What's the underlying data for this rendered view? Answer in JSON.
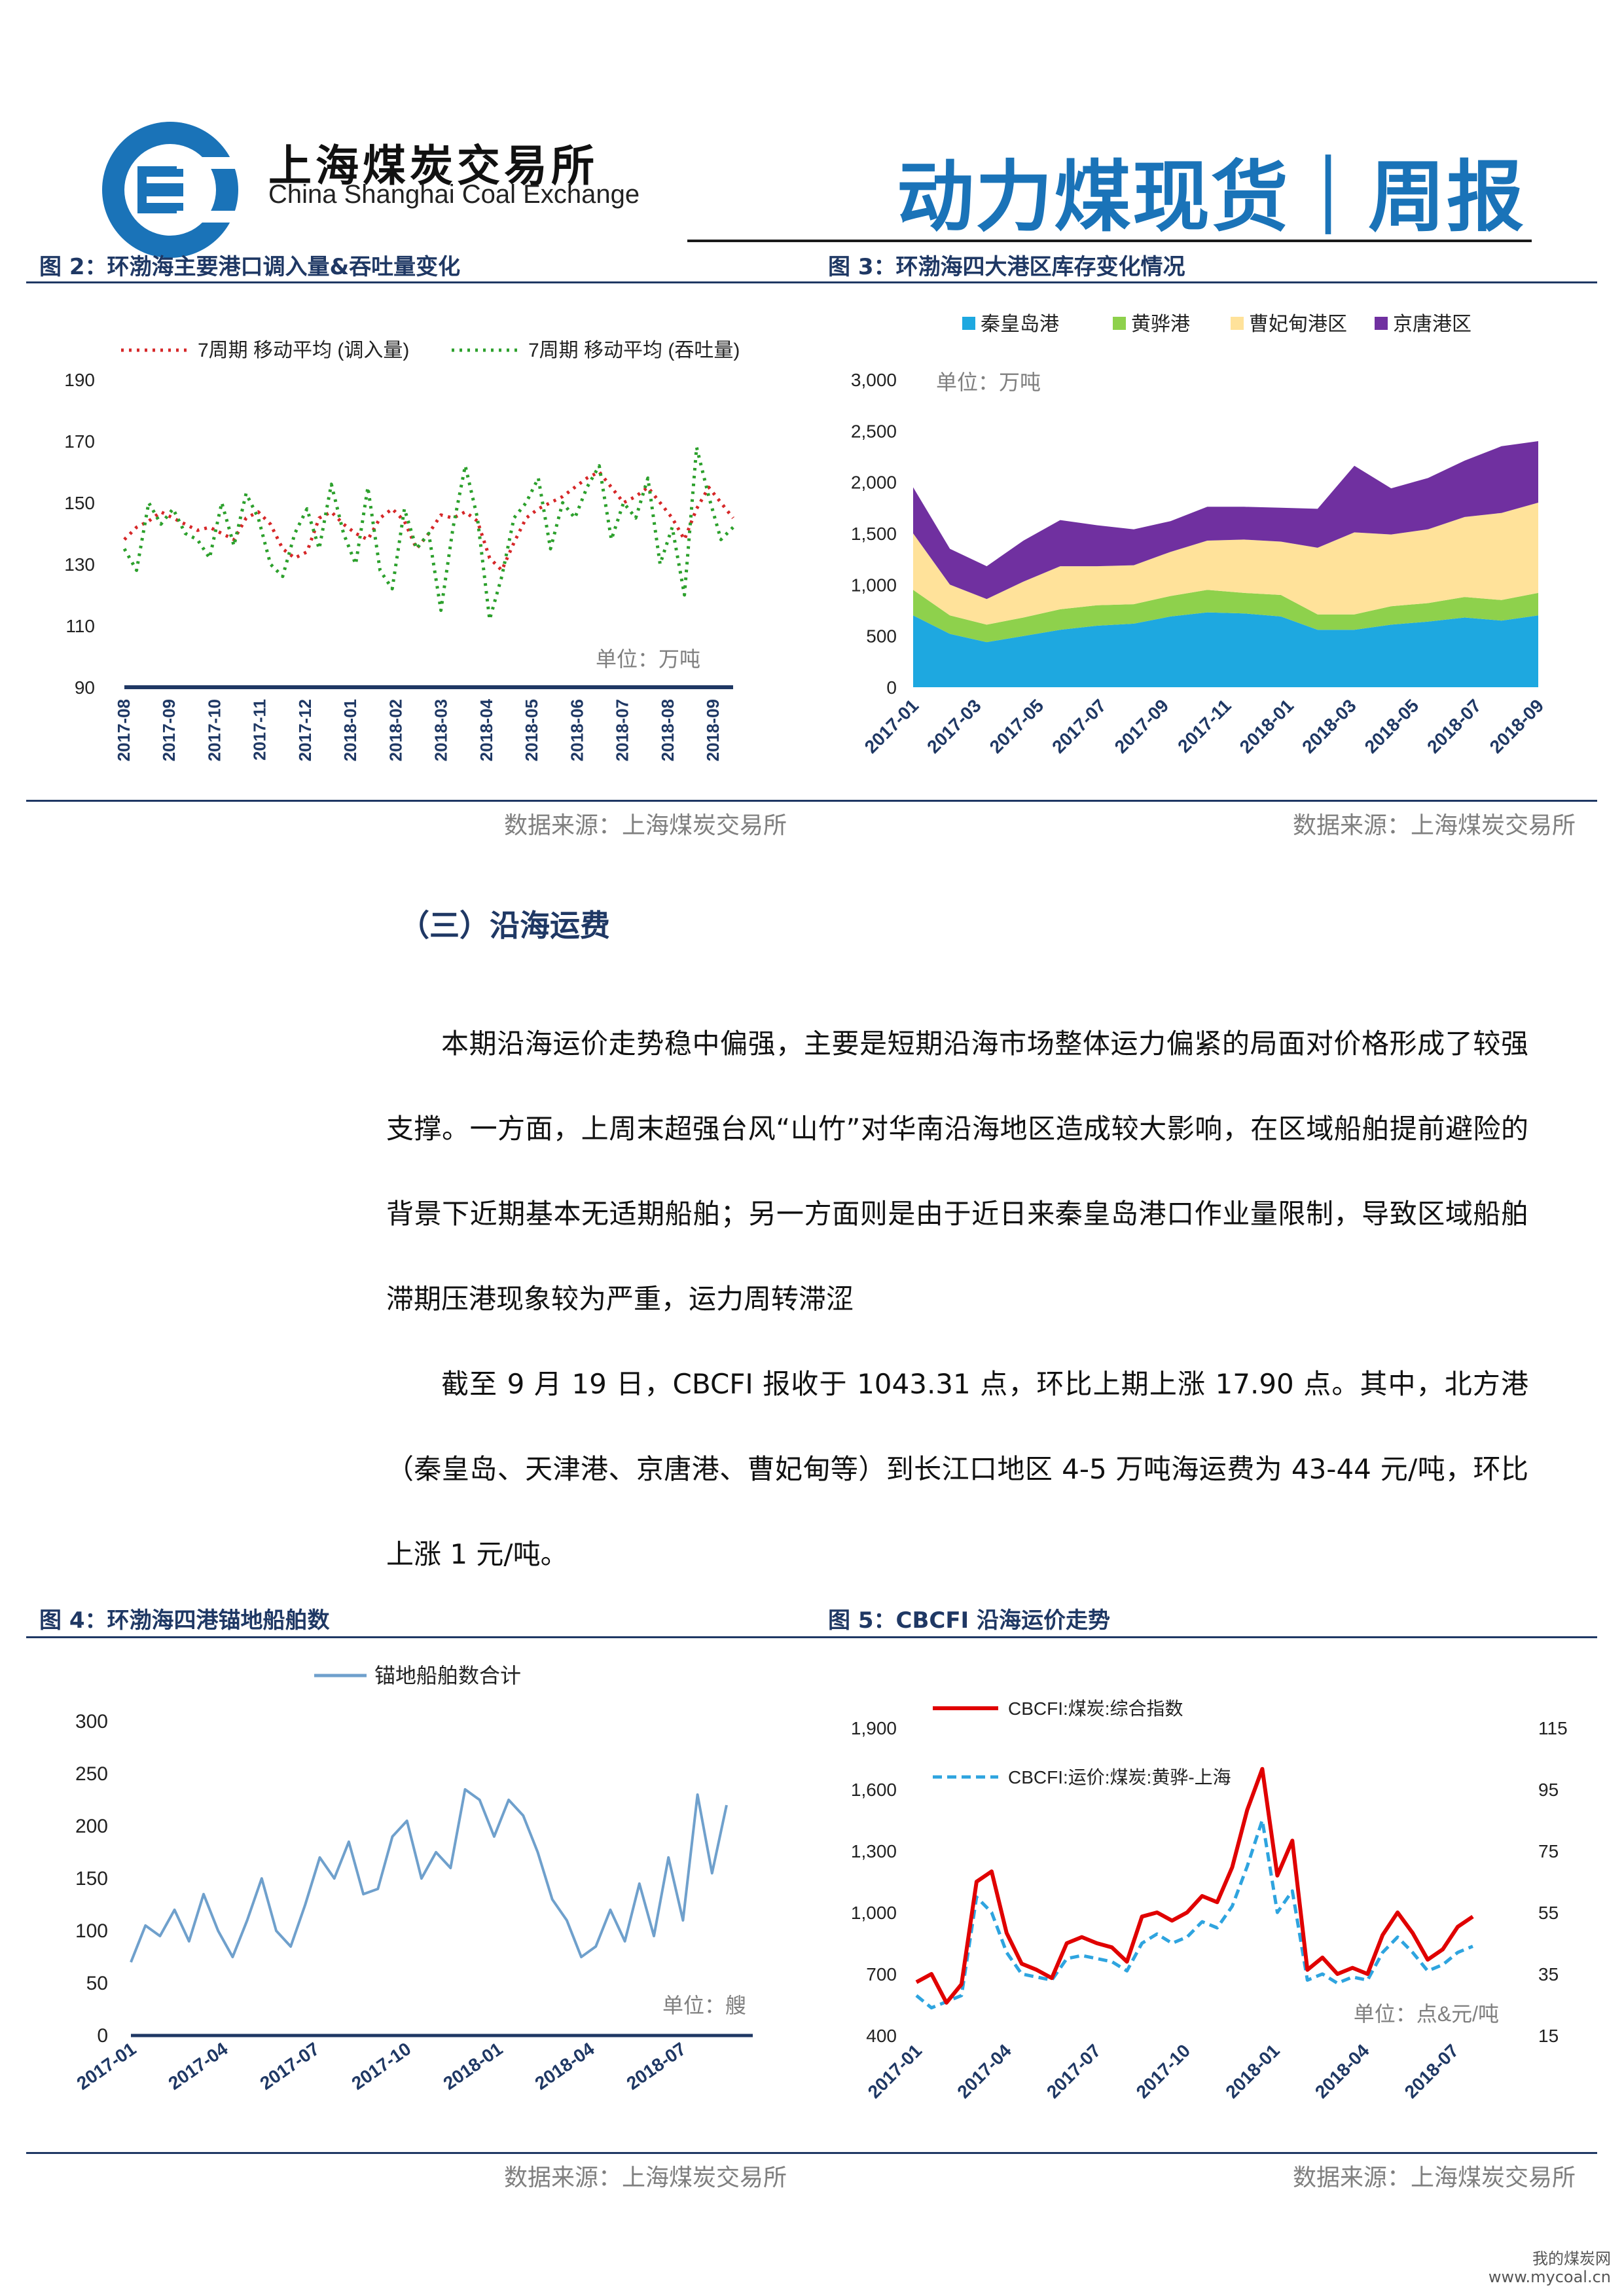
{
  "header": {
    "brand_cn": "上海煤炭交易所",
    "brand_en": "China Shanghai Coal Exchange",
    "report_title": "动力煤现货｜周报"
  },
  "colors": {
    "brand_blue": "#1a73b8",
    "navy": "#1f3864"
  },
  "figures": {
    "fig2": {
      "title": "图 2：环渤海主要港口调入量&吞吐量变化",
      "source": "数据来源：上海煤炭交易所",
      "unit": "单位：万吨"
    },
    "fig3": {
      "title": "图 3：环渤海四大港区库存变化情况",
      "source": "数据来源：上海煤炭交易所",
      "unit": "单位：万吨"
    },
    "fig4": {
      "title": "图 4：环渤海四港锚地船舶数",
      "source": "数据来源：上海煤炭交易所",
      "unit": "单位：艘"
    },
    "fig5": {
      "title": "图 5：CBCFI 沿海运价走势",
      "source": "数据来源：上海煤炭交易所",
      "unit": "单位：点&元/吨"
    }
  },
  "section": {
    "heading": "（三）沿海运费",
    "para1": "本期沿海运价走势稳中偏强，主要是短期沿海市场整体运力偏紧的局面对价格形成了较强支撑。一方面，上周末超强台风“山竹”对华南沿海地区造成较大影响，在区域船舶提前避险的背景下近期基本无适期船舶；另一方面则是由于近日来秦皇岛港口作业量限制，导致区域船舶滞期压港现象较为严重，运力周转滞涩",
    "para2": "截至 9 月 19 日，CBCFI 报收于 1043.31 点，环比上期上涨 17.90 点。其中，北方港（秦皇岛、天津港、京唐港、曹妃甸等）到长江口地区 4-5 万吨海运费为 43-44 元/吨，环比上涨 1 元/吨。"
  },
  "watermark": {
    "cn": "我的煤炭网",
    "url": "www.mycoal.cn"
  },
  "chart_data": [
    {
      "id": "fig2",
      "type": "line",
      "series": [
        {
          "name": "7周期 移动平均 (调入量)",
          "color": "#d62728",
          "values": [
            138,
            142,
            144,
            147,
            145,
            143,
            141,
            142,
            140,
            138,
            145,
            147,
            143,
            135,
            132,
            134,
            145,
            147,
            143,
            140,
            138,
            145,
            148,
            144,
            135,
            140,
            146,
            145,
            147,
            144,
            132,
            128,
            137,
            145,
            148,
            150,
            152,
            155,
            158,
            160,
            155,
            150,
            152,
            155,
            150,
            145,
            138,
            148,
            155,
            150,
            145
          ]
        },
        {
          "name": "7周期 移动平均 (吞吐量)",
          "color": "#2ca02c",
          "values": [
            135,
            128,
            150,
            143,
            148,
            140,
            138,
            132,
            150,
            136,
            153,
            145,
            130,
            126,
            140,
            148,
            135,
            156,
            140,
            130,
            155,
            128,
            122,
            148,
            135,
            140,
            115,
            142,
            162,
            145,
            112,
            126,
            145,
            150,
            158,
            135,
            150,
            145,
            155,
            162,
            138,
            150,
            145,
            158,
            130,
            142,
            120,
            168,
            152,
            138,
            142
          ]
        }
      ],
      "x_tick_labels": [
        "2017-08",
        "2017-09",
        "2017-10",
        "2017-11",
        "2017-12",
        "2018-01",
        "2018-02",
        "2018-03",
        "2018-04",
        "2018-05",
        "2018-06",
        "2018-07",
        "2018-08",
        "2018-09"
      ],
      "yticks": [
        90,
        110,
        130,
        150,
        170,
        190
      ],
      "ylim": [
        90,
        190
      ]
    },
    {
      "id": "fig3",
      "type": "area",
      "x_tick_labels": [
        "2017-01",
        "2017-03",
        "2017-05",
        "2017-07",
        "2017-09",
        "2017-11",
        "2018-01",
        "2018-03",
        "2018-05",
        "2018-07",
        "2018-09"
      ],
      "yticks": [
        0,
        500,
        1000,
        1500,
        2000,
        2500,
        3000
      ],
      "ylim": [
        0,
        3000
      ],
      "series": [
        {
          "name": "秦皇岛港",
          "color": "#1ea8e0",
          "values": [
            700,
            520,
            440,
            500,
            560,
            600,
            620,
            690,
            730,
            720,
            690,
            560,
            560,
            610,
            640,
            680,
            650,
            700
          ]
        },
        {
          "name": "黄骅港",
          "color": "#8ed14c",
          "values": [
            250,
            180,
            170,
            180,
            200,
            200,
            190,
            200,
            220,
            200,
            210,
            150,
            150,
            180,
            180,
            200,
            200,
            220
          ]
        },
        {
          "name": "曹妃甸港区",
          "color": "#ffe29a",
          "values": [
            550,
            300,
            250,
            350,
            420,
            380,
            380,
            430,
            480,
            520,
            520,
            650,
            800,
            700,
            720,
            780,
            850,
            880
          ]
        },
        {
          "name": "京唐港区",
          "color": "#7030a0",
          "values": [
            450,
            350,
            320,
            400,
            450,
            400,
            350,
            300,
            330,
            320,
            330,
            380,
            650,
            450,
            500,
            550,
            650,
            600
          ]
        }
      ]
    },
    {
      "id": "fig4",
      "type": "line",
      "series": [
        {
          "name": "锚地船舶数合计",
          "color": "#6fa0cc",
          "values": [
            70,
            105,
            95,
            120,
            90,
            135,
            100,
            75,
            110,
            150,
            100,
            85,
            125,
            170,
            150,
            185,
            135,
            140,
            190,
            205,
            150,
            175,
            160,
            235,
            225,
            190,
            225,
            210,
            175,
            130,
            110,
            75,
            85,
            120,
            90,
            145,
            95,
            170,
            110,
            230,
            155,
            220
          ]
        }
      ],
      "x_tick_labels": [
        "2017-01",
        "2017-04",
        "2017-07",
        "2017-10",
        "2018-01",
        "2018-04",
        "2018-07"
      ],
      "yticks": [
        0,
        50,
        100,
        150,
        200,
        250,
        300
      ],
      "ylim": [
        0,
        300
      ]
    },
    {
      "id": "fig5",
      "type": "line",
      "x_tick_labels": [
        "2017-01",
        "2017-04",
        "2017-07",
        "2017-10",
        "2018-01",
        "2018-04",
        "2018-07"
      ],
      "yticks_left": [
        400,
        700,
        1000,
        1300,
        1600,
        1900
      ],
      "ylim_left": [
        400,
        1900
      ],
      "yticks_right": [
        15,
        35,
        55,
        75,
        95,
        115
      ],
      "ylim_right": [
        15,
        115
      ],
      "series": [
        {
          "name": "CBCFI:煤炭:综合指数",
          "axis": "left",
          "color": "#e00000",
          "values": [
            660,
            700,
            560,
            650,
            1150,
            1200,
            900,
            750,
            720,
            680,
            850,
            880,
            850,
            830,
            760,
            980,
            1000,
            960,
            1000,
            1080,
            1050,
            1220,
            1500,
            1700,
            1180,
            1350,
            720,
            780,
            700,
            730,
            700,
            890,
            1000,
            900,
            770,
            820,
            930,
            980
          ]
        },
        {
          "name": "CBCFI:运价:煤炭:黄骅-上海",
          "axis": "right",
          "color": "#2ea4df",
          "values": [
            28,
            24,
            26,
            28,
            60,
            55,
            42,
            35,
            34,
            33,
            40,
            41,
            40,
            39,
            36,
            45,
            48,
            45,
            47,
            52,
            50,
            57,
            70,
            85,
            55,
            62,
            33,
            35,
            32,
            34,
            33,
            42,
            47,
            42,
            36,
            38,
            42,
            44
          ]
        }
      ]
    }
  ]
}
